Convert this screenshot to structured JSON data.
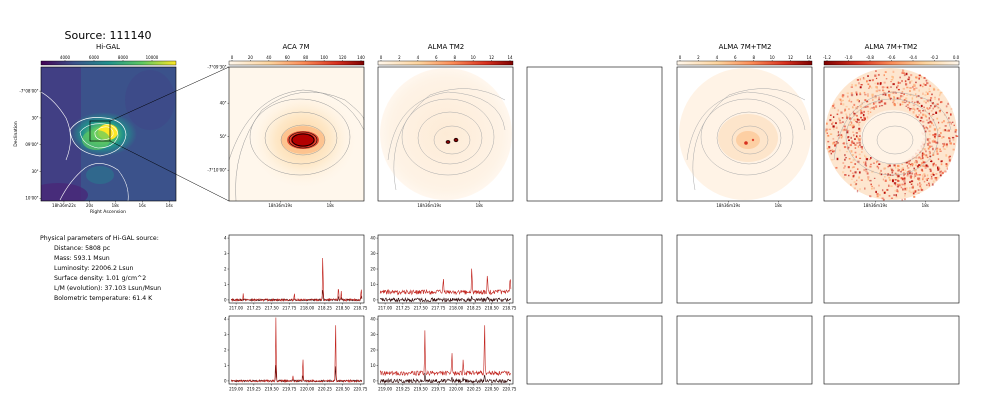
{
  "header": {
    "title": "Source: 111140"
  },
  "panels": {
    "higal": {
      "title": "Hi-GAL",
      "colorbar_ticks": [
        "4000",
        "6000",
        "8000",
        "10000"
      ],
      "xticks": [
        "18h36m22s",
        "20s",
        "18s",
        "16s",
        "14s"
      ],
      "yticks": [
        "-7°08'00\"",
        "30\"",
        "09'00\"",
        "30\"",
        "10'00\""
      ],
      "xlabel": "Right Ascension",
      "ylabel": "Declination"
    },
    "aca7m": {
      "title": "ACA 7M",
      "colorbar_ticks": [
        "0",
        "20",
        "40",
        "60",
        "80",
        "100",
        "120",
        "140"
      ],
      "xticks": [
        "18h36m19s",
        "18s"
      ],
      "yticks": [
        "-7°09'30\"",
        "40\"",
        "50\"",
        "-7°10'00\""
      ]
    },
    "tm2": {
      "title": "ALMA TM2",
      "colorbar_ticks": [
        "0",
        "2",
        "4",
        "6",
        "8",
        "10",
        "12",
        "14"
      ],
      "xticks": [
        "18h36m19s",
        "18s"
      ]
    },
    "combo": {
      "title": "ALMA 7M+TM2",
      "colorbar_ticks": [
        "0",
        "2",
        "4",
        "6",
        "8",
        "10",
        "12",
        "14"
      ],
      "xticks": [
        "18h36m19s",
        "18s"
      ]
    },
    "combo2": {
      "title": "ALMA 7M+TM2",
      "colorbar_ticks": [
        "-1.2",
        "-1.0",
        "-0.8",
        "-0.6",
        "-0.4",
        "-0.2",
        "0.0"
      ],
      "xticks": [
        "18h36m19s",
        "18s"
      ]
    }
  },
  "params": {
    "heading": "Physical parameters of Hi-GAL source:",
    "distance": "Distance: 5808 pc",
    "mass": "Mass: 593.1 Msun",
    "luminosity": "Luminosity: 22006.2 Lsun",
    "surface_density": "Surface density: 1.01 g/cm^2",
    "lm": "L/M (evolution): 37.103 Lsun/Msun",
    "tbol": "Bolometric temperature: 61.4 K"
  },
  "chart_data": [
    {
      "type": "line",
      "panel": "ACA 7M spectrum 1",
      "xticks": [
        "217.00",
        "217.25",
        "217.50",
        "217.75",
        "218.00",
        "218.25",
        "218.50",
        "218.75"
      ],
      "yticks": [
        "0",
        "1",
        "2",
        "3",
        "4"
      ],
      "xlim": [
        216.9,
        218.8
      ],
      "ylim": [
        -0.2,
        4.2
      ],
      "peaks": [
        {
          "x": 218.22,
          "y": 3.0
        },
        {
          "x": 218.44,
          "y": 0.9
        },
        {
          "x": 218.76,
          "y": 0.8
        },
        {
          "x": 218.48,
          "y": 0.6
        },
        {
          "x": 217.82,
          "y": 0.5
        },
        {
          "x": 217.1,
          "y": 0.4
        }
      ]
    },
    {
      "type": "line",
      "panel": "ALMA TM2 spectrum 1",
      "xticks": [
        "217.00",
        "217.25",
        "217.50",
        "217.75",
        "218.00",
        "218.25",
        "218.50",
        "218.75"
      ],
      "yticks": [
        "0",
        "10",
        "20",
        "30",
        "40"
      ],
      "xlim": [
        216.9,
        218.8
      ],
      "ylim": [
        -2,
        42
      ],
      "baseline_offset": 5,
      "peaks": [
        {
          "x": 218.22,
          "y": 17
        },
        {
          "x": 218.44,
          "y": 11
        },
        {
          "x": 218.76,
          "y": 10
        },
        {
          "x": 217.82,
          "y": 9
        }
      ]
    },
    {
      "type": "line",
      "panel": "ACA 7M spectrum 2",
      "xticks": [
        "219.00",
        "219.25",
        "219.50",
        "219.75",
        "220.00",
        "220.25",
        "220.50",
        "220.75"
      ],
      "yticks": [
        "0",
        "1",
        "2",
        "3",
        "4"
      ],
      "xlim": [
        218.9,
        220.8
      ],
      "ylim": [
        -0.2,
        4.2
      ],
      "peaks": [
        {
          "x": 219.56,
          "y": 4.1
        },
        {
          "x": 220.4,
          "y": 4.1
        },
        {
          "x": 219.94,
          "y": 1.5
        },
        {
          "x": 219.8,
          "y": 0.4
        }
      ]
    },
    {
      "type": "line",
      "panel": "ALMA TM2 spectrum 2",
      "xticks": [
        "219.00",
        "219.25",
        "219.50",
        "219.75",
        "220.00",
        "220.25",
        "220.50",
        "220.75"
      ],
      "yticks": [
        "0",
        "10",
        "20",
        "30",
        "40"
      ],
      "xlim": [
        218.9,
        220.8
      ],
      "ylim": [
        -2,
        42
      ],
      "baseline_offset": 5,
      "peaks": [
        {
          "x": 220.4,
          "y": 36
        },
        {
          "x": 219.56,
          "y": 28
        },
        {
          "x": 219.94,
          "y": 13
        },
        {
          "x": 220.1,
          "y": 9
        }
      ]
    }
  ]
}
